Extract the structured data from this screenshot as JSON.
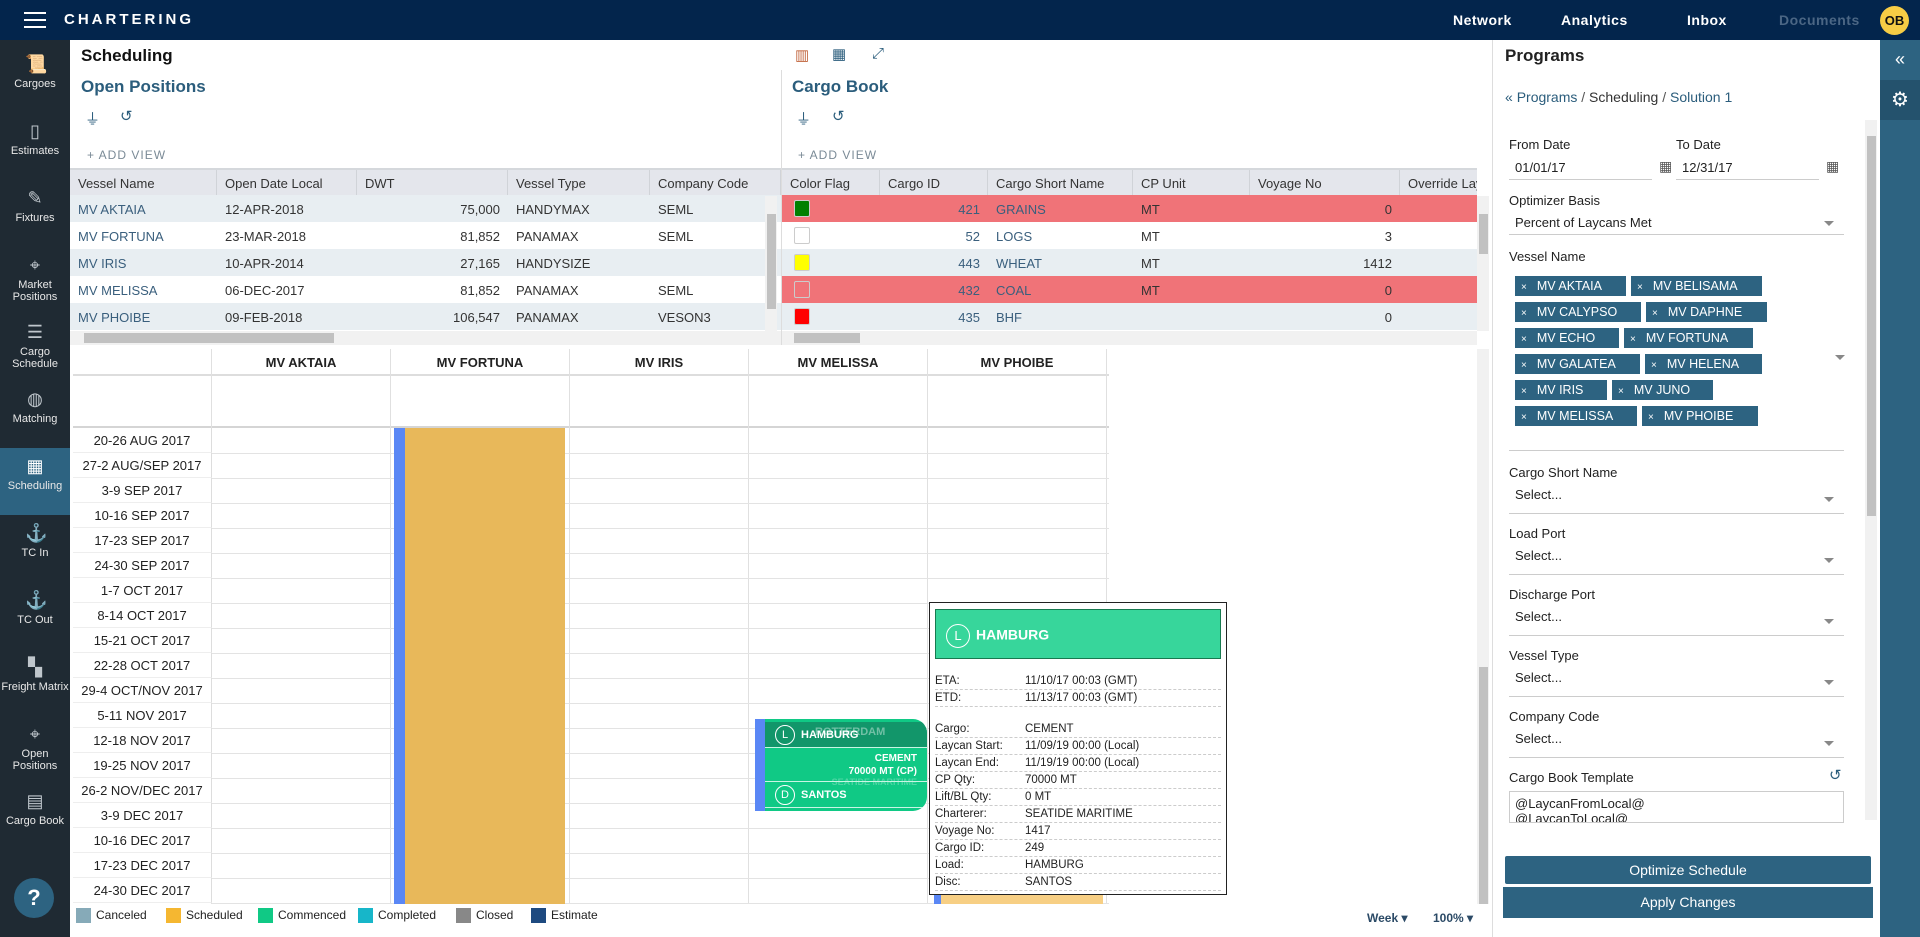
{
  "app": {
    "title": "CHARTERING",
    "nav": [
      "Network",
      "Analytics",
      "Inbox",
      "Documents"
    ],
    "avatar": "OB"
  },
  "sidebar": [
    {
      "label": "Cargoes",
      "icon": "scroll-icon"
    },
    {
      "label": "Estimates",
      "icon": "map-icon"
    },
    {
      "label": "Fixtures",
      "icon": "contract-icon"
    },
    {
      "label": "Market Positions",
      "icon": "map-pin-icon"
    },
    {
      "label": "Cargo Schedule",
      "icon": "gantt-icon"
    },
    {
      "label": "Matching",
      "icon": "globe-icon"
    },
    {
      "label": "Scheduling",
      "icon": "calendar-icon",
      "active": true
    },
    {
      "label": "TC In",
      "icon": "ship-in-icon"
    },
    {
      "label": "TC Out",
      "icon": "ship-out-icon"
    },
    {
      "label": "Freight Matrix",
      "icon": "grid-icon"
    },
    {
      "label": "Open Positions",
      "icon": "pin-list-icon"
    },
    {
      "label": "Cargo Book",
      "icon": "book-icon"
    }
  ],
  "help": "?",
  "page": {
    "title": "Scheduling"
  },
  "open_positions": {
    "title": "Open Positions",
    "add_view": "+ ADD VIEW",
    "columns": [
      "Vessel Name",
      "Open Date Local",
      "DWT",
      "Vessel Type",
      "Company Code"
    ],
    "rows": [
      [
        "MV AKTAIA",
        "12-APR-2018",
        "75,000",
        "HANDYMAX",
        "SEML"
      ],
      [
        "MV FORTUNA",
        "23-MAR-2018",
        "81,852",
        "PANAMAX",
        "SEML"
      ],
      [
        "MV IRIS",
        "10-APR-2014",
        "27,165",
        "HANDYSIZE",
        ""
      ],
      [
        "MV MELISSA",
        "06-DEC-2017",
        "81,852",
        "PANAMAX",
        "SEML"
      ],
      [
        "MV PHOIBE",
        "09-FEB-2018",
        "106,547",
        "PANAMAX",
        "VESON3"
      ]
    ]
  },
  "cargo_book": {
    "title": "Cargo Book",
    "add_view": "+ ADD VIEW",
    "columns": [
      "Color Flag",
      "Cargo ID",
      "Cargo Short Name",
      "CP Unit",
      "Voyage No",
      "Override Laycan"
    ],
    "rows": [
      {
        "flag": "#008000",
        "id": "421",
        "name": "GRAINS",
        "unit": "MT",
        "voyage": "0",
        "highlight": true
      },
      {
        "flag": "#ffffff",
        "id": "52",
        "name": "LOGS",
        "unit": "MT",
        "voyage": "3",
        "highlight": false
      },
      {
        "flag": "#ffff00",
        "id": "443",
        "name": "WHEAT",
        "unit": "MT",
        "voyage": "1412",
        "highlight": false
      },
      {
        "flag": "#f07378",
        "id": "432",
        "name": "COAL",
        "unit": "MT",
        "voyage": "0",
        "highlight": true
      },
      {
        "flag": "#ff0000",
        "id": "435",
        "name": "BHF",
        "unit": "",
        "voyage": "0",
        "highlight": false
      }
    ]
  },
  "gantt": {
    "vessels": [
      "MV AKTAIA",
      "MV FORTUNA",
      "MV IRIS",
      "MV MELISSA",
      "MV PHOIBE"
    ],
    "weeks": [
      "20-26 AUG 2017",
      "27-2 AUG/SEP 2017",
      "3-9 SEP 2017",
      "10-16 SEP 2017",
      "17-23 SEP 2017",
      "24-30 SEP 2017",
      "1-7 OCT 2017",
      "8-14 OCT 2017",
      "15-21 OCT 2017",
      "22-28 OCT 2017",
      "29-4 OCT/NOV 2017",
      "5-11 NOV 2017",
      "12-18 NOV 2017",
      "19-25 NOV 2017",
      "26-2 NOV/DEC 2017",
      "3-9 DEC 2017",
      "10-16 DEC 2017",
      "17-23 DEC 2017",
      "24-30 DEC 2017"
    ],
    "voyage_block": {
      "load_badge": "L",
      "load": "HAMBURG",
      "overlap": "ROTTERDAM",
      "cargo": "CEMENT",
      "qty": "70000 MT (CP)",
      "charterer": "SEATIDE MARITIME",
      "disc_badge": "D",
      "disc": "SANTOS"
    },
    "legend": [
      {
        "label": "Canceled",
        "color": "#86aab8"
      },
      {
        "label": "Scheduled",
        "color": "#f5b731"
      },
      {
        "label": "Commenced",
        "color": "#10c985"
      },
      {
        "label": "Completed",
        "color": "#17b6c9"
      },
      {
        "label": "Closed",
        "color": "#888888"
      },
      {
        "label": "Estimate",
        "color": "#1e4a80"
      }
    ],
    "period": "Week",
    "zoom": "100%"
  },
  "tooltip": {
    "badge": "L",
    "port": "HAMBURG",
    "times": [
      [
        "ETA:",
        "11/10/17 00:03 (GMT)"
      ],
      [
        "ETD:",
        "11/13/17 00:03 (GMT)"
      ]
    ],
    "details": [
      [
        "Cargo:",
        "CEMENT"
      ],
      [
        "Laycan Start:",
        "11/09/19 00:00 (Local)"
      ],
      [
        "Laycan End:",
        "11/19/19 00:00 (Local)"
      ],
      [
        "CP Qty:",
        "70000 MT"
      ],
      [
        "Lift/BL Qty:",
        "0 MT"
      ],
      [
        "Charterer:",
        "SEATIDE MARITIME"
      ],
      [
        "Voyage No:",
        "1417"
      ],
      [
        "Cargo ID:",
        "249"
      ],
      [
        "Load:",
        "HAMBURG"
      ],
      [
        "Disc:",
        "SANTOS"
      ]
    ]
  },
  "programs": {
    "title": "Programs",
    "breadcrumb": [
      "Programs",
      "Scheduling",
      "Solution 1"
    ],
    "from_label": "From Date",
    "from": "01/01/17",
    "to_label": "To Date",
    "to": "12/31/17",
    "basis_label": "Optimizer Basis",
    "basis": "Percent of Laycans Met",
    "vessel_label": "Vessel Name",
    "vessels": [
      "MV AKTAIA",
      "MV BELISAMA",
      "MV CALYPSO",
      "MV DAPHNE",
      "MV ECHO",
      "MV FORTUNA",
      "MV GALATEA",
      "MV HELENA",
      "MV IRIS",
      "MV JUNO",
      "MV MELISSA",
      "MV PHOIBE"
    ],
    "selects": [
      {
        "label": "Cargo Short Name",
        "value": "Select..."
      },
      {
        "label": "Load Port",
        "value": "Select..."
      },
      {
        "label": "Discharge Port",
        "value": "Select..."
      },
      {
        "label": "Vessel Type",
        "value": "Select..."
      },
      {
        "label": "Company Code",
        "value": "Select..."
      }
    ],
    "template_label": "Cargo Book Template",
    "template": "@LaycanFromLocal@\n@LaycanToLocal@",
    "optimize": "Optimize Schedule",
    "apply": "Apply Changes"
  }
}
